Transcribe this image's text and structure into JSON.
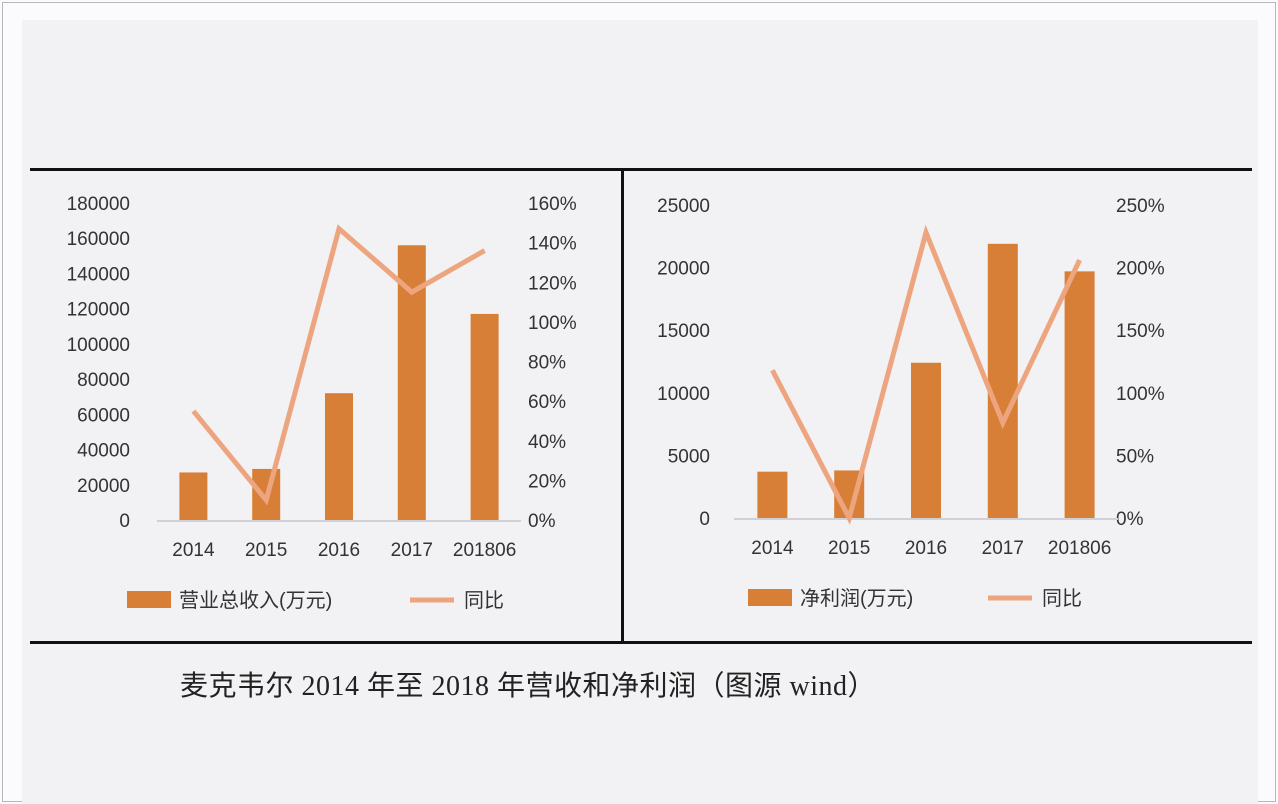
{
  "caption": "麦克韦尔 2014 年至 2018 年营收和净利润（图源 wind）",
  "colors": {
    "bar": "#d87f37",
    "line": "#eda57f",
    "axis": "#d0d0d8",
    "text": "#333333",
    "background": "#f2f1f3"
  },
  "chart_data": [
    {
      "type": "bar+line",
      "title": "",
      "categories": [
        "2014",
        "2015",
        "2016",
        "2017",
        "201806"
      ],
      "series": [
        {
          "name": "营业总收入(万元)",
          "type": "bar",
          "axis": "left",
          "values": [
            27000,
            29000,
            72000,
            156000,
            117000
          ]
        },
        {
          "name": "同比",
          "type": "line",
          "axis": "right",
          "values": [
            55,
            10,
            147,
            115,
            136
          ],
          "unit": "%"
        }
      ],
      "left_axis": {
        "ylim": [
          0,
          180000
        ],
        "ticks": [
          "0",
          "20000",
          "40000",
          "60000",
          "80000",
          "100000",
          "120000",
          "140000",
          "160000",
          "180000"
        ]
      },
      "right_axis": {
        "ylim": [
          0,
          160
        ],
        "ticks": [
          "0%",
          "20%",
          "40%",
          "60%",
          "80%",
          "100%",
          "120%",
          "140%",
          "160%"
        ]
      },
      "xlabel": "",
      "ylabel": "",
      "grid": false,
      "legend_position": "bottom",
      "legend": [
        "营业总收入(万元)",
        "同比"
      ]
    },
    {
      "type": "bar+line",
      "title": "",
      "categories": [
        "2014",
        "2015",
        "2016",
        "2017",
        "201806"
      ],
      "series": [
        {
          "name": "净利润(万元)",
          "type": "bar",
          "axis": "left",
          "values": [
            3700,
            3800,
            12400,
            21900,
            19700
          ]
        },
        {
          "name": "同比",
          "type": "line",
          "axis": "right",
          "values": [
            118,
            0,
            228,
            76,
            206
          ],
          "unit": "%"
        }
      ],
      "left_axis": {
        "ylim": [
          0,
          25000
        ],
        "ticks": [
          "0",
          "5000",
          "10000",
          "15000",
          "20000",
          "25000"
        ]
      },
      "right_axis": {
        "ylim": [
          0,
          250
        ],
        "ticks": [
          "0%",
          "50%",
          "100%",
          "150%",
          "200%",
          "250%"
        ]
      },
      "xlabel": "",
      "ylabel": "",
      "grid": false,
      "legend_position": "bottom",
      "legend": [
        "净利润(万元)",
        "同比"
      ]
    }
  ]
}
